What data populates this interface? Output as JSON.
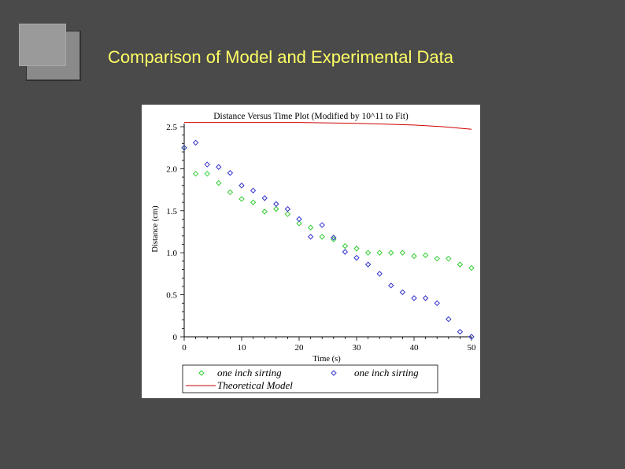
{
  "slide": {
    "title": "Comparison of Model and Experimental Data"
  },
  "colors": {
    "background": "#4a4a4a",
    "title": "#ffff66",
    "series_green": "#33cc33",
    "series_blue": "#3333cc",
    "model_red": "#cc0000"
  },
  "chart_data": {
    "type": "scatter",
    "title": "Distance Versus Time Plot (Modified by 10^11 to Fit)",
    "xlabel": "Time (s)",
    "ylabel": "Distance (cm)",
    "xlim": [
      0,
      50
    ],
    "ylim": [
      0,
      2.5
    ],
    "x_ticks": [
      "0",
      "10",
      "20",
      "30",
      "40",
      "50"
    ],
    "y_ticks": [
      "0",
      "0.5",
      "1.0",
      "1.5",
      "2.0",
      "2.5"
    ],
    "legend_position": "bottom",
    "series": [
      {
        "name": "one inch sirting",
        "style": "diamond",
        "color": "#33cc33",
        "points": [
          [
            0,
            2.25
          ],
          [
            2,
            1.94
          ],
          [
            4,
            1.94
          ],
          [
            6,
            1.83
          ],
          [
            8,
            1.72
          ],
          [
            10,
            1.64
          ],
          [
            12,
            1.6
          ],
          [
            14,
            1.49
          ],
          [
            16,
            1.52
          ],
          [
            18,
            1.46
          ],
          [
            20,
            1.35
          ],
          [
            22,
            1.3
          ],
          [
            24,
            1.19
          ],
          [
            26,
            1.16
          ],
          [
            28,
            1.08
          ],
          [
            30,
            1.05
          ],
          [
            32,
            1.0
          ],
          [
            34,
            1.0
          ],
          [
            36,
            1.0
          ],
          [
            38,
            1.0
          ],
          [
            40,
            0.96
          ],
          [
            42,
            0.97
          ],
          [
            44,
            0.93
          ],
          [
            46,
            0.93
          ],
          [
            48,
            0.86
          ],
          [
            50,
            0.82
          ]
        ]
      },
      {
        "name": "one inch sirting",
        "style": "diamond",
        "color": "#3333cc",
        "points": [
          [
            0,
            2.25
          ],
          [
            2,
            2.31
          ],
          [
            4,
            2.05
          ],
          [
            6,
            2.02
          ],
          [
            8,
            1.95
          ],
          [
            10,
            1.8
          ],
          [
            12,
            1.74
          ],
          [
            14,
            1.65
          ],
          [
            16,
            1.58
          ],
          [
            18,
            1.52
          ],
          [
            20,
            1.4
          ],
          [
            22,
            1.19
          ],
          [
            24,
            1.33
          ],
          [
            26,
            1.18
          ],
          [
            28,
            1.01
          ],
          [
            30,
            0.94
          ],
          [
            32,
            0.86
          ],
          [
            34,
            0.75
          ],
          [
            36,
            0.61
          ],
          [
            38,
            0.53
          ],
          [
            40,
            0.46
          ],
          [
            42,
            0.46
          ],
          [
            44,
            0.4
          ],
          [
            46,
            0.21
          ],
          [
            48,
            0.06
          ],
          [
            50,
            0.0
          ]
        ]
      },
      {
        "name": "Theoretical Model",
        "style": "line",
        "color": "#cc0000",
        "points": [
          [
            0,
            2.55
          ],
          [
            10,
            2.55
          ],
          [
            20,
            2.55
          ],
          [
            30,
            2.54
          ],
          [
            35,
            2.53
          ],
          [
            40,
            2.52
          ],
          [
            45,
            2.5
          ],
          [
            50,
            2.47
          ]
        ]
      }
    ]
  }
}
